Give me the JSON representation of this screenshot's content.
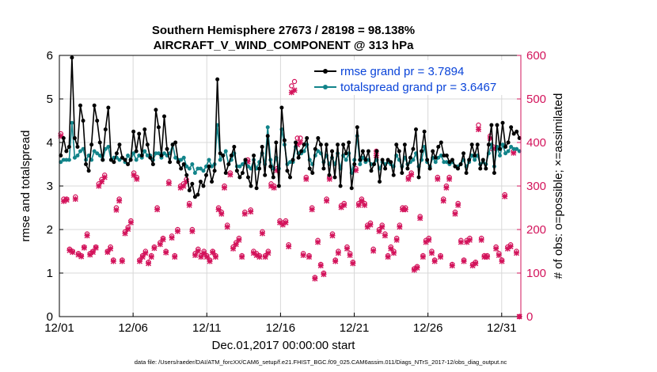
{
  "chart_data": {
    "type": "line",
    "title_line1": "Southern Hemisphere 27673 / 28198 = 98.138%",
    "title_line2": "AIRCRAFT_V_WIND_COMPONENT @ 313 hPa",
    "xlabel": "Dec.01,2017 00:00:00 start",
    "ylabel_left": "rmse and totalspread",
    "ylabel_right": "# of obs: o=possible; ×=assimilated",
    "footnote": "data file: /Users/raeder/DAI/ATM_forcXX/CAM6_setup/f.e21.FHIST_BGC.f09_025.CAM6assim.011/Diags_NTrS_2017-12/obs_diag_output.nc",
    "xlim": [
      1,
      32.3
    ],
    "ylim_left": [
      0,
      6
    ],
    "ylim_right": [
      0,
      600
    ],
    "x_ticks": [
      1,
      6,
      11,
      16,
      21,
      26,
      31
    ],
    "x_tick_labels": [
      "12/01",
      "12/06",
      "12/11",
      "12/16",
      "12/21",
      "12/26",
      "12/31"
    ],
    "y_left_ticks": [
      "0",
      "1",
      "2",
      "3",
      "4",
      "5",
      "6"
    ],
    "y_right_ticks": [
      "0",
      "100",
      "200",
      "300",
      "400",
      "500",
      "600"
    ],
    "colors": {
      "rmse": "#000000",
      "spread": "#12848a",
      "obs": "#d3135b",
      "legend_text": "#0a44d9",
      "grid": "#d8d8d8"
    },
    "series": [
      {
        "name": "rmse grand pr = 3.7894",
        "axis": "left",
        "values": [
          3.7,
          4.1,
          3.8,
          3.9,
          5.95,
          4.1,
          3.9,
          4.85,
          4.5,
          3.5,
          3.35,
          3.95,
          4.85,
          4.5,
          4.0,
          3.6,
          4.3,
          4.8,
          3.6,
          3.55,
          3.75,
          3.95,
          3.65,
          3.6,
          3.5,
          3.6,
          4.25,
          3.8,
          4.2,
          3.7,
          4.3,
          3.95,
          3.65,
          3.5,
          4.75,
          4.35,
          3.7,
          4.6,
          3.85,
          3.55,
          3.95,
          4.0,
          3.55,
          3.4,
          3.5,
          3.25,
          2.9,
          3.05,
          2.75,
          2.8,
          3.1,
          3.0,
          3.25,
          3.45,
          3.1,
          3.35,
          5.45,
          3.75,
          3.7,
          3.3,
          3.5,
          3.7,
          3.9,
          3.35,
          3.2,
          3.3,
          3.6,
          3.2,
          3.0,
          3.7,
          2.95,
          3.4,
          3.9,
          3.25,
          4.15,
          3.45,
          3.2,
          4.0,
          3.0,
          4.8,
          4.05,
          3.35,
          3.2,
          3.6,
          4.0,
          3.65,
          3.8,
          3.95,
          4.1,
          3.4,
          3.3,
          3.85,
          4.1,
          3.95,
          3.4,
          3.95,
          3.25,
          3.8,
          3.2,
          3.95,
          3.0,
          3.95,
          3.75,
          4.0,
          2.95,
          3.5,
          4.35,
          3.6,
          3.8,
          3.6,
          3.8,
          3.35,
          3.5,
          3.8,
          3.1,
          3.6,
          3.4,
          3.6,
          3.55,
          3.25,
          3.95,
          3.8,
          3.3,
          3.95,
          3.4,
          3.65,
          3.85,
          4.3,
          3.2,
          3.8,
          4.25,
          3.6,
          3.4,
          3.8,
          3.65,
          3.9,
          4.0,
          3.7,
          3.7,
          3.55,
          3.6,
          3.45,
          3.4,
          3.5,
          3.75,
          3.3,
          3.6,
          3.95,
          3.7,
          3.95,
          3.4,
          3.6,
          3.4,
          3.95,
          4.4,
          3.3,
          4.4,
          3.85,
          4.45,
          3.9,
          4.0,
          4.35,
          4.2,
          4.25,
          4.1
        ]
      },
      {
        "name": "totalspread grand pr = 3.6467",
        "axis": "left",
        "values": [
          3.55,
          3.6,
          3.6,
          3.6,
          4.45,
          3.65,
          3.7,
          3.8,
          3.85,
          3.6,
          3.7,
          3.6,
          3.8,
          3.75,
          3.7,
          3.6,
          3.85,
          3.9,
          3.6,
          3.65,
          3.65,
          3.6,
          3.65,
          3.55,
          3.7,
          3.6,
          3.75,
          3.6,
          3.7,
          3.65,
          3.8,
          3.7,
          3.7,
          3.6,
          3.75,
          3.75,
          3.65,
          3.75,
          3.7,
          3.75,
          3.95,
          3.65,
          3.6,
          3.6,
          3.65,
          3.45,
          3.4,
          3.5,
          3.3,
          3.4,
          3.4,
          3.35,
          3.45,
          3.6,
          3.45,
          3.5,
          4.4,
          3.6,
          3.7,
          3.8,
          3.5,
          3.6,
          3.75,
          3.45,
          3.45,
          3.5,
          3.55,
          3.45,
          3.4,
          3.6,
          3.4,
          3.55,
          3.75,
          3.5,
          4.35,
          3.6,
          3.4,
          3.65,
          3.4,
          4.3,
          3.95,
          3.5,
          3.55,
          3.55,
          3.9,
          3.75,
          3.75,
          3.8,
          3.95,
          3.6,
          3.5,
          3.7,
          3.8,
          3.75,
          3.55,
          3.7,
          3.5,
          3.65,
          3.5,
          3.75,
          3.4,
          3.7,
          3.6,
          3.75,
          3.3,
          3.6,
          4.15,
          3.5,
          3.65,
          3.55,
          3.6,
          3.5,
          3.5,
          3.6,
          3.4,
          3.55,
          3.5,
          3.55,
          3.5,
          3.45,
          3.7,
          3.6,
          3.45,
          3.65,
          3.5,
          3.55,
          3.6,
          3.75,
          3.45,
          3.6,
          3.9,
          3.55,
          3.45,
          3.65,
          3.55,
          3.65,
          3.7,
          3.55,
          3.55,
          3.5,
          3.55,
          3.45,
          3.45,
          3.5,
          3.6,
          3.45,
          3.55,
          3.7,
          3.6,
          3.7,
          3.5,
          3.55,
          3.5,
          3.75,
          3.95,
          3.45,
          3.9,
          3.7,
          3.95,
          3.75,
          3.8,
          3.9,
          3.85,
          3.85,
          3.8
        ]
      }
    ],
    "obs_possible": [
      420,
      270,
      270,
      155,
      150,
      275,
      145,
      140,
      160,
      190,
      145,
      150,
      160,
      305,
      315,
      325,
      150,
      160,
      130,
      250,
      270,
      130,
      195,
      205,
      220,
      330,
      320,
      130,
      140,
      150,
      125,
      140,
      160,
      250,
      170,
      180,
      150,
      310,
      185,
      140,
      200,
      300,
      305,
      315,
      260,
      200,
      145,
      155,
      140,
      150,
      140,
      130,
      150,
      140,
      250,
      240,
      300,
      210,
      330,
      160,
      170,
      180,
      140,
      240,
      360,
      245,
      150,
      145,
      140,
      195,
      140,
      150,
      305,
      300,
      340,
      220,
      215,
      220,
      165,
      530,
      540,
      410,
      410,
      145,
      320,
      140,
      250,
      90,
      175,
      120,
      100,
      270,
      320,
      190,
      130,
      150,
      255,
      260,
      160,
      145,
      125,
      340,
      260,
      270,
      260,
      210,
      215,
      155,
      380,
      200,
      210,
      190,
      140,
      160,
      150,
      180,
      210,
      250,
      250,
      320,
      330,
      110,
      115,
      230,
      140,
      175,
      180,
      150,
      130,
      320,
      140,
      270,
      300,
      320,
      120,
      240,
      260,
      175,
      130,
      175,
      180,
      120,
      125,
      440,
      180,
      140,
      140,
      415,
      390,
      160,
      145,
      130,
      280,
      160,
      165,
      380,
      150,
      0
    ],
    "obs_assimilated": [
      415,
      265,
      268,
      152,
      148,
      270,
      142,
      138,
      158,
      186,
      142,
      148,
      158,
      300,
      310,
      320,
      148,
      156,
      127,
      245,
      266,
      127,
      191,
      201,
      216,
      325,
      316,
      127,
      137,
      146,
      122,
      137,
      157,
      246,
      166,
      177,
      147,
      306,
      181,
      137,
      196,
      296,
      300,
      310,
      256,
      196,
      141,
      151,
      137,
      146,
      137,
      127,
      147,
      137,
      246,
      236,
      296,
      206,
      326,
      156,
      166,
      176,
      137,
      236,
      356,
      241,
      146,
      141,
      137,
      191,
      137,
      146,
      300,
      296,
      336,
      216,
      211,
      216,
      161,
      515,
      520,
      395,
      400,
      141,
      316,
      137,
      246,
      87,
      171,
      117,
      97,
      266,
      316,
      186,
      127,
      146,
      251,
      256,
      156,
      141,
      122,
      336,
      256,
      266,
      256,
      206,
      211,
      151,
      370,
      196,
      206,
      186,
      137,
      156,
      146,
      176,
      206,
      246,
      246,
      316,
      326,
      107,
      112,
      226,
      137,
      171,
      176,
      146,
      127,
      316,
      137,
      266,
      296,
      316,
      117,
      236,
      256,
      171,
      127,
      171,
      176,
      117,
      122,
      430,
      176,
      137,
      137,
      410,
      386,
      156,
      141,
      127,
      276,
      156,
      161,
      376,
      146,
      0
    ]
  }
}
